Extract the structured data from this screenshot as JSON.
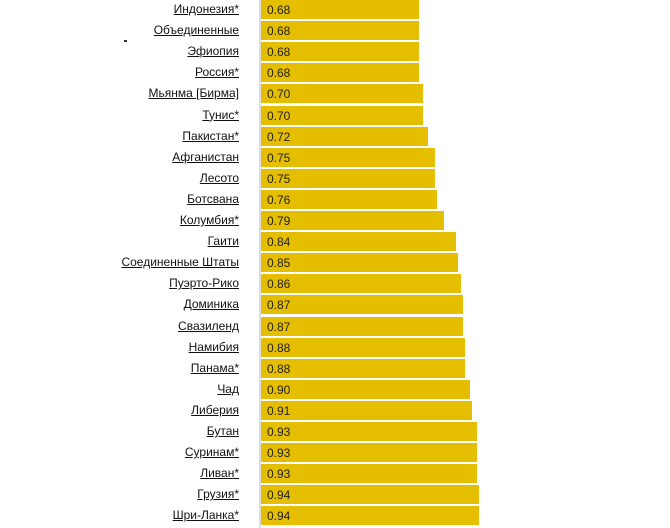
{
  "chart_data": {
    "type": "bar",
    "orientation": "horizontal",
    "bar_color": "#e6be00",
    "title": "",
    "xlabel": "",
    "ylabel": "",
    "xlim": [
      0,
      1.2
    ],
    "grid": false,
    "categories": [
      "Индонезия*",
      "Объединенные",
      "Эфиопия",
      "Россия*",
      "Мьянма [Бирма]",
      "Тунис*",
      "Пакистан*",
      "Афганистан",
      "Лесото",
      "Ботсвана",
      "Колумбия*",
      "Гаити",
      "Соединенные Штаты",
      "Пуэрто-Рико",
      "Доминика",
      "Свазиленд",
      "Намибия",
      "Панама*",
      "Чад",
      "Либерия",
      "Бутан",
      "Суринам*",
      "Ливан*",
      "Грузия*",
      "Шри-Ланка*"
    ],
    "values": [
      0.68,
      0.68,
      0.68,
      0.68,
      0.7,
      0.7,
      0.72,
      0.75,
      0.75,
      0.76,
      0.79,
      0.84,
      0.85,
      0.86,
      0.87,
      0.87,
      0.88,
      0.88,
      0.9,
      0.91,
      0.93,
      0.93,
      0.93,
      0.94,
      0.94
    ],
    "value_labels": [
      "0.68",
      "0.68",
      "0.68",
      "0.68",
      "0.70",
      "0.70",
      "0.72",
      "0.75",
      "0.75",
      "0.76",
      "0.79",
      "0.84",
      "0.85",
      "0.86",
      "0.87",
      "0.87",
      "0.88",
      "0.88",
      "0.90",
      "0.91",
      "0.93",
      "0.93",
      "0.93",
      "0.94",
      "0.94"
    ]
  }
}
